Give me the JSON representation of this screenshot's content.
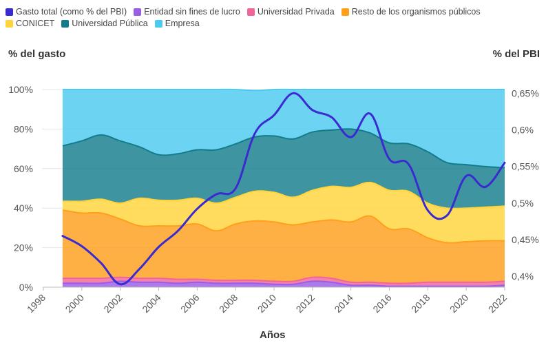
{
  "chart_data": {
    "type": "area",
    "stacked": true,
    "percent_stacked": true,
    "xlabel": "Años",
    "ylabel_left": "% del gasto",
    "ylabel_right": "% del PBI",
    "x_ticks": [
      "1998",
      "2000",
      "2002",
      "2004",
      "2006",
      "2008",
      "2010",
      "2012",
      "2014",
      "2016",
      "2018",
      "2020",
      "2022"
    ],
    "y_left_ticks": [
      "0%",
      "20%",
      "40%",
      "60%",
      "80%",
      "100%"
    ],
    "y_left_range": [
      0,
      100
    ],
    "y_right_ticks": [
      "0,4%",
      "0,45%",
      "0,5%",
      "0,55%",
      "0,6%",
      "0,65%"
    ],
    "y_right_range": [
      0.385,
      0.655
    ],
    "years": [
      1999,
      2000,
      2001,
      2002,
      2003,
      2004,
      2005,
      2006,
      2007,
      2008,
      2009,
      2010,
      2011,
      2012,
      2013,
      2014,
      2015,
      2016,
      2017,
      2018,
      2019,
      2020,
      2021,
      2022
    ],
    "series": [
      {
        "name": "Entidad sin fines de lucro",
        "color": "#9b5de5",
        "values": [
          2,
          2,
          2,
          3,
          2.5,
          2.5,
          2,
          2.5,
          2,
          2,
          2,
          1.5,
          1.5,
          3,
          2.5,
          1,
          1,
          0.5,
          0.5,
          0.5,
          0.5,
          0.5,
          0.5,
          1
        ]
      },
      {
        "name": "Universidad Privada",
        "color": "#f2659a",
        "values": [
          2.5,
          2.5,
          2.5,
          2,
          2,
          2,
          2,
          1.5,
          1.5,
          1.5,
          1.5,
          1.5,
          1.5,
          2,
          2,
          1.5,
          1.5,
          1.5,
          1.5,
          2,
          2,
          2,
          2,
          2
        ]
      },
      {
        "name": "Resto de los organismos públicos",
        "color": "#ff9f1c",
        "values": [
          34.5,
          33,
          33,
          29.5,
          26.5,
          26.5,
          27,
          28,
          25,
          28.5,
          30,
          30,
          28.5,
          28,
          29.5,
          30.5,
          33.5,
          27.5,
          27.5,
          22.5,
          20,
          20.5,
          21,
          20.5
        ]
      },
      {
        "name": "CONICET",
        "color": "#ffd43b",
        "values": [
          4.5,
          6,
          7,
          8,
          14,
          13,
          13,
          13,
          14,
          13.5,
          15,
          15,
          14,
          16,
          17,
          17.5,
          17,
          19.5,
          19,
          17.5,
          17.5,
          17,
          17,
          17.5
        ]
      },
      {
        "name": "Universidad Pública",
        "color": "#137c8b",
        "values": [
          28,
          30.5,
          32.5,
          31.5,
          26,
          23,
          23.5,
          24.5,
          27,
          27,
          27.5,
          28.5,
          29.5,
          29.5,
          28.5,
          29.5,
          25,
          24,
          24,
          26,
          23,
          22,
          20.5,
          19.5
        ]
      },
      {
        "name": "Empresa",
        "color": "#4cc9f0",
        "values": [
          28.5,
          26,
          23,
          26,
          29,
          33,
          32.5,
          30.5,
          30.5,
          27.5,
          23.5,
          23.5,
          25,
          21.5,
          20.5,
          20,
          22,
          27,
          27.5,
          31.5,
          37,
          38,
          39,
          39.5
        ]
      }
    ],
    "line_series": {
      "name": "Gasto total (como % del PBI)",
      "color": "#3a2bd1",
      "axis": "right",
      "values": [
        0.455,
        0.441,
        0.418,
        0.389,
        0.41,
        0.44,
        0.462,
        0.492,
        0.512,
        0.52,
        0.595,
        0.62,
        0.65,
        0.627,
        0.617,
        0.59,
        0.622,
        0.56,
        0.553,
        0.49,
        0.483,
        0.537,
        0.522,
        0.555
      ]
    }
  }
}
